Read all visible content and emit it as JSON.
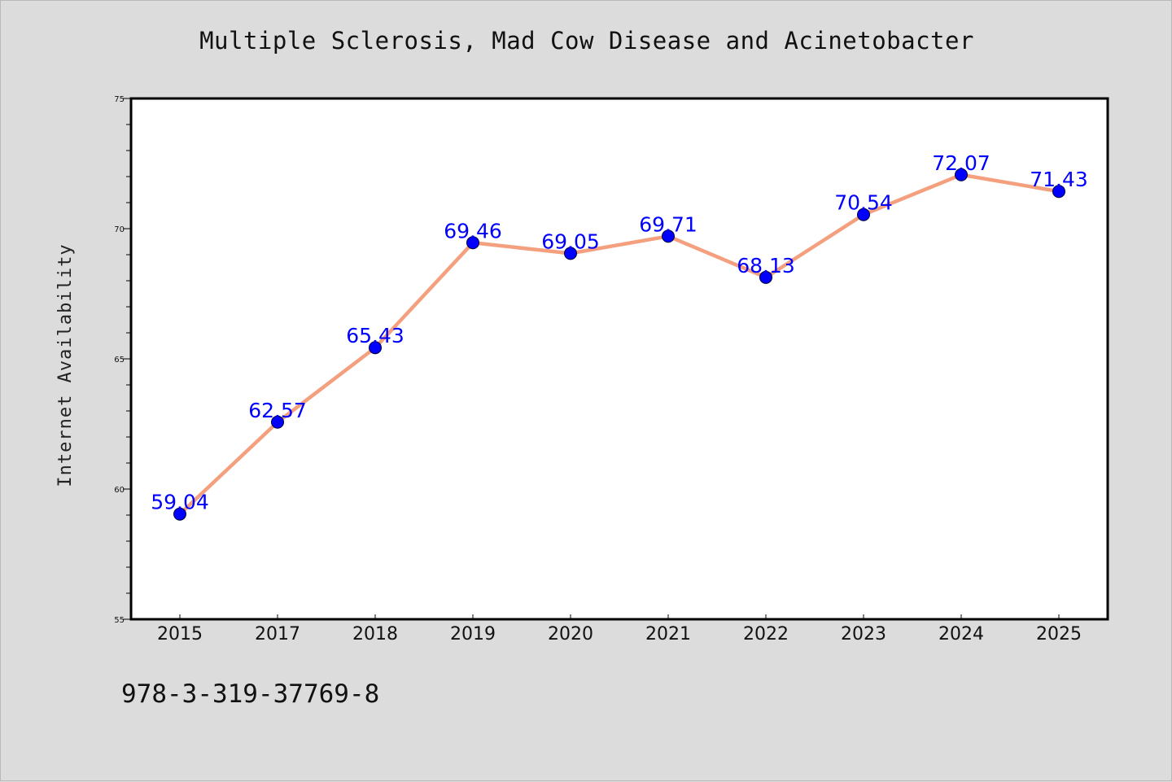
{
  "title": "Multiple Sclerosis, Mad Cow Disease and Acinetobacter",
  "footer_text": "978-3-319-37769-8",
  "colors": {
    "background": "#dcdcdc",
    "plot_background": "#ffffff",
    "line": "#f4a07e",
    "marker": "#0000ff",
    "data_label": "#0000ff"
  },
  "chart_data": {
    "type": "line",
    "title": "Multiple Sclerosis, Mad Cow Disease and Acinetobacter",
    "xlabel": "",
    "ylabel": "Internet Availability",
    "categories": [
      "2015",
      "2017",
      "2018",
      "2019",
      "2020",
      "2021",
      "2022",
      "2023",
      "2024",
      "2025"
    ],
    "series": [
      {
        "values": [
          59.04,
          62.57,
          65.43,
          69.46,
          69.05,
          69.71,
          68.13,
          70.54,
          72.07,
          71.43
        ],
        "labels": [
          "59.04",
          "62.57",
          "65.43",
          "69.46",
          "69.05",
          "69.71",
          "68.13",
          "70.54",
          "72.07",
          "71.43"
        ]
      }
    ],
    "ylim": [
      55,
      75
    ],
    "y_major_ticks": [
      55,
      60,
      65,
      70,
      75
    ],
    "y_major_tick_labels": [
      "55",
      "60",
      "65",
      "70",
      "75"
    ],
    "y_minor_step": 1,
    "grid": false,
    "legend": "none",
    "data_labels": true
  }
}
